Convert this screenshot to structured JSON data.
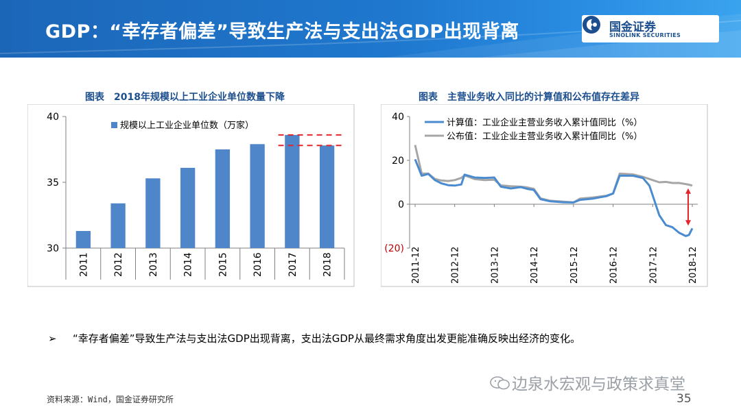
{
  "header": {
    "title": "GDP：“幸存者偏差”导致生产法与支出法GDP出现背离",
    "logo_cn": "国金证券",
    "logo_en": "SINOLINK SECURITIES"
  },
  "left_chart_title": "图表　2018年规模以上工业企业单位数量下降",
  "right_chart_title": "图表　主营业务收入同比的计算值和公布值存在差异",
  "bullet": {
    "marker": "➢",
    "text": "“幸存者偏差”导致生产法与支出法GDP出现背离，支出法GDP从最终需求角度出发更能准确反映出经济的变化。"
  },
  "source": "资料来源：Wind，国金证券研究所",
  "watermark": "边泉水宏观与政策求真堂",
  "page_number": "35",
  "colors": {
    "accent": "#1f6fc5",
    "bar": "#4f86c9",
    "calc_line": "#4a8bd0",
    "pub_line": "#a6a6a6",
    "marker": "#e3242b"
  },
  "chart_data": [
    {
      "type": "bar",
      "categories": [
        "2011",
        "2012",
        "2013",
        "2014",
        "2015",
        "2016",
        "2017",
        "2018"
      ],
      "series": [
        {
          "name": "规模以上工业企业单位数（万家）",
          "values": [
            31.3,
            33.4,
            35.3,
            36.1,
            37.5,
            37.9,
            38.6,
            37.8
          ]
        }
      ],
      "ylim": [
        30,
        40
      ],
      "yticks": [
        "30",
        "35",
        "40"
      ],
      "legend": "top-left",
      "grid": false,
      "annotation": "dashed reference lines at 2017 and 2018 levels"
    },
    {
      "type": "line",
      "x_tick_labels": [
        "2011-12",
        "2012-12",
        "2013-12",
        "2014-12",
        "2015-12",
        "2016-12",
        "2017-12",
        "2018-12"
      ],
      "ylim": [
        -20,
        40
      ],
      "yticks": [
        "40",
        "20",
        "0",
        "(20)"
      ],
      "legend": "top-left",
      "grid": false,
      "series": [
        {
          "name": "计算值：工业企业主营业务收入累计值同比（%）",
          "points": [
            [
              "2011-12",
              20.5
            ],
            [
              "2012-02",
              13.0
            ],
            [
              "2012-04",
              13.8
            ],
            [
              "2012-06",
              11.0
            ],
            [
              "2012-08",
              9.5
            ],
            [
              "2012-10",
              8.7
            ],
            [
              "2012-12",
              8.5
            ],
            [
              "2013-02",
              9.0
            ],
            [
              "2013-03",
              13.5
            ],
            [
              "2013-06",
              12.2
            ],
            [
              "2013-09",
              12.0
            ],
            [
              "2013-12",
              12.2
            ],
            [
              "2014-02",
              8.0
            ],
            [
              "2014-05",
              7.2
            ],
            [
              "2014-08",
              7.8
            ],
            [
              "2014-10",
              7.0
            ],
            [
              "2014-12",
              6.5
            ],
            [
              "2015-02",
              2.3
            ],
            [
              "2015-05",
              1.3
            ],
            [
              "2015-09",
              0.9
            ],
            [
              "2015-12",
              0.8
            ],
            [
              "2016-02",
              2.0
            ],
            [
              "2016-06",
              2.6
            ],
            [
              "2016-10",
              3.7
            ],
            [
              "2016-12",
              4.9
            ],
            [
              "2017-02",
              13.0
            ],
            [
              "2017-06",
              13.0
            ],
            [
              "2017-09",
              12.0
            ],
            [
              "2017-11",
              8.5
            ],
            [
              "2018-02",
              -5.0
            ],
            [
              "2018-04",
              -9.5
            ],
            [
              "2018-06",
              -10.5
            ],
            [
              "2018-08",
              -13.0
            ],
            [
              "2018-10",
              -14.5
            ],
            [
              "2018-11",
              -14.0
            ],
            [
              "2018-12",
              -11.0
            ]
          ]
        },
        {
          "name": "公布值：工业企业主营业务收入累计值同比（%）",
          "points": [
            [
              "2011-12",
              27.0
            ],
            [
              "2012-02",
              14.0
            ],
            [
              "2012-04",
              14.0
            ],
            [
              "2012-06",
              11.5
            ],
            [
              "2012-08",
              10.8
            ],
            [
              "2012-10",
              10.6
            ],
            [
              "2012-12",
              11.0
            ],
            [
              "2013-02",
              12.0
            ],
            [
              "2013-03",
              13.2
            ],
            [
              "2013-06",
              11.5
            ],
            [
              "2013-09",
              11.0
            ],
            [
              "2013-12",
              11.2
            ],
            [
              "2014-02",
              8.6
            ],
            [
              "2014-05",
              8.2
            ],
            [
              "2014-08",
              8.0
            ],
            [
              "2014-10",
              7.7
            ],
            [
              "2014-12",
              7.0
            ],
            [
              "2015-02",
              2.7
            ],
            [
              "2015-05",
              1.6
            ],
            [
              "2015-09",
              1.2
            ],
            [
              "2015-12",
              0.8
            ],
            [
              "2016-02",
              2.6
            ],
            [
              "2016-06",
              3.1
            ],
            [
              "2016-10",
              3.9
            ],
            [
              "2016-12",
              4.9
            ],
            [
              "2017-02",
              14.0
            ],
            [
              "2017-06",
              13.6
            ],
            [
              "2017-09",
              12.5
            ],
            [
              "2017-11",
              11.5
            ],
            [
              "2018-02",
              10.0
            ],
            [
              "2018-04",
              10.2
            ],
            [
              "2018-06",
              9.7
            ],
            [
              "2018-08",
              9.7
            ],
            [
              "2018-10",
              9.2
            ],
            [
              "2018-11",
              8.9
            ],
            [
              "2018-12",
              8.5
            ]
          ]
        }
      ],
      "annotation": "red double arrow showing gap in 2018-12"
    }
  ]
}
